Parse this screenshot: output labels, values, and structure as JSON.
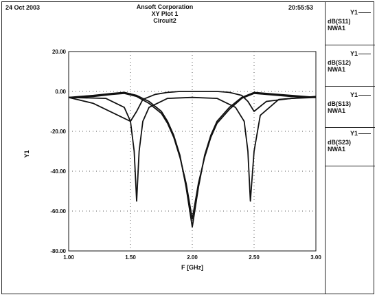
{
  "header": {
    "date": "24 Oct 2003",
    "company": "Ansoft Corporation",
    "plot_name": "XY Plot 1",
    "circuit": "Circuit2",
    "time": "20:55:53"
  },
  "legend": [
    {
      "axis": "Y1",
      "trace": "dB(S11)",
      "source": "NWA1"
    },
    {
      "axis": "Y1",
      "trace": "dB(S12)",
      "source": "NWA1"
    },
    {
      "axis": "Y1",
      "trace": "dB(S13)",
      "source": "NWA1"
    },
    {
      "axis": "Y1",
      "trace": "dB(S23)",
      "source": "NWA1"
    }
  ],
  "chart_data": {
    "type": "line",
    "title": "XY Plot 1",
    "xlabel": "F [GHz]",
    "ylabel": "Y1",
    "xlim": [
      1.0,
      3.0
    ],
    "ylim": [
      -80.0,
      20.0
    ],
    "xticks": [
      "1.00",
      "1.50",
      "2.00",
      "2.50",
      "3.00"
    ],
    "yticks": [
      "20.00",
      "0.00",
      "-20.00",
      "-40.00",
      "-60.00",
      "-80.00"
    ],
    "grid": "dotted",
    "legend_position": "right-panel",
    "series": [
      {
        "name": "dB(S11)",
        "x": [
          1.0,
          1.3,
          1.45,
          1.5,
          1.53,
          1.55,
          1.57,
          1.6,
          1.65,
          1.8,
          2.0,
          2.2,
          2.35,
          2.42,
          2.45,
          2.47,
          2.5,
          2.55,
          2.7,
          3.0
        ],
        "y": [
          -3,
          -3.5,
          -8,
          -15,
          -30,
          -55,
          -30,
          -15,
          -8,
          -3.5,
          -3,
          -3.5,
          -8,
          -15,
          -30,
          -55,
          -30,
          -12,
          -4,
          -2.5
        ]
      },
      {
        "name": "dB(S12)",
        "x": [
          1.0,
          1.2,
          1.4,
          1.5,
          1.55,
          1.6,
          1.7,
          1.8,
          1.9,
          2.0,
          2.1,
          2.2,
          2.3,
          2.4,
          2.45,
          2.5,
          2.6,
          2.8,
          3.0
        ],
        "y": [
          -3,
          -6,
          -12,
          -15,
          -10,
          -4,
          -1.5,
          -0.5,
          0,
          0,
          0,
          0,
          -0.5,
          -2,
          -5,
          -10,
          -5,
          -3.5,
          -3
        ]
      },
      {
        "name": "dB(S13)",
        "x": [
          1.0,
          1.2,
          1.35,
          1.45,
          1.55,
          1.65,
          1.75,
          1.8,
          1.85,
          1.9,
          1.95,
          2.0,
          2.05,
          2.1,
          2.15,
          2.2,
          2.3,
          2.4,
          2.5,
          2.6,
          2.8,
          3.0
        ],
        "y": [
          -3,
          -2,
          -1,
          -0.5,
          -2,
          -5,
          -10,
          -15,
          -22,
          -32,
          -48,
          -68,
          -48,
          -32,
          -22,
          -15,
          -8,
          -3,
          -0.5,
          -1,
          -2,
          -3
        ]
      },
      {
        "name": "dB(S23)",
        "x": [
          1.0,
          1.2,
          1.35,
          1.45,
          1.55,
          1.65,
          1.75,
          1.8,
          1.85,
          1.9,
          1.95,
          2.0,
          2.05,
          2.1,
          2.15,
          2.2,
          2.3,
          2.4,
          2.5,
          2.6,
          2.8,
          3.0
        ],
        "y": [
          -3,
          -2.5,
          -1.5,
          -1,
          -2.5,
          -6,
          -11,
          -16,
          -23,
          -33,
          -46,
          -64,
          -46,
          -33,
          -23,
          -16,
          -9,
          -3.5,
          -1,
          -1.5,
          -2.5,
          -3
        ]
      }
    ]
  }
}
